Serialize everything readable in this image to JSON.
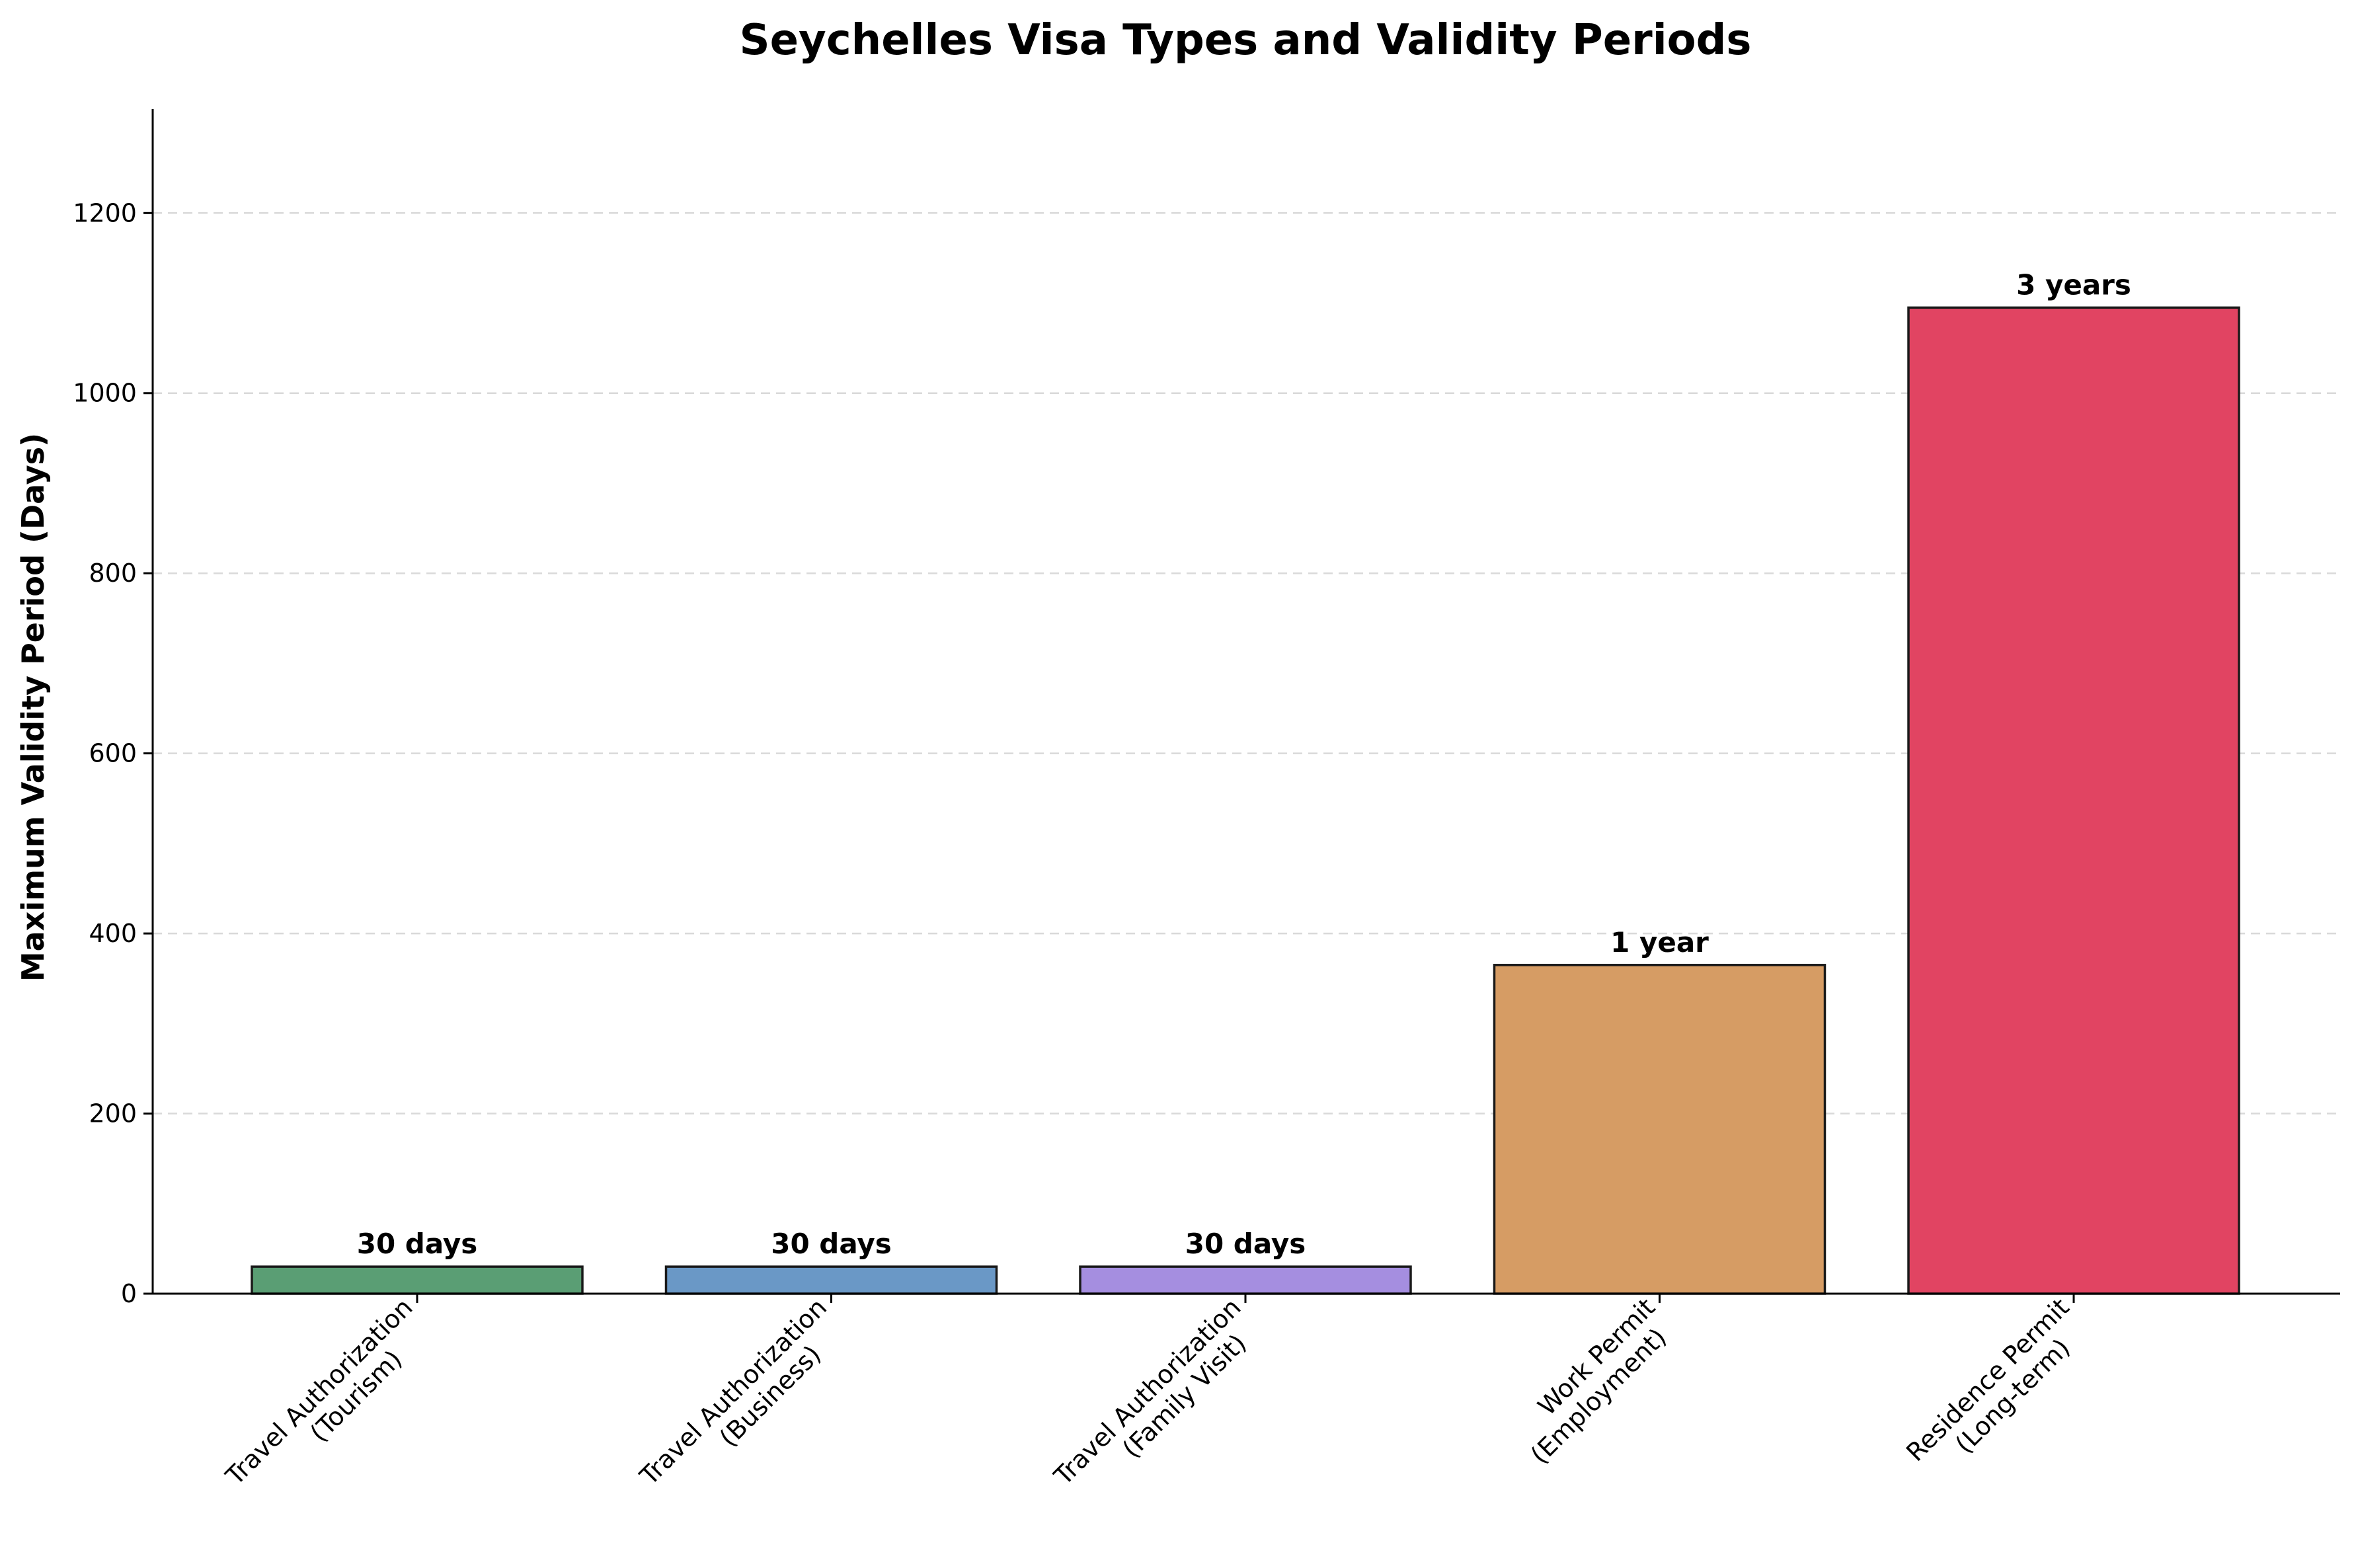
{
  "chart_data": {
    "type": "bar",
    "title": "Seychelles Visa Types and Validity Periods",
    "xlabel": "",
    "ylabel": "Maximum Validity Period (Days)",
    "ylim": [
      0,
      1314
    ],
    "yticks": [
      0,
      200,
      400,
      600,
      800,
      1000,
      1200
    ],
    "grid": "y-axis dashed",
    "categories": [
      [
        "Travel Authorization",
        "(Tourism)"
      ],
      [
        "Travel Authorization",
        "(Business)"
      ],
      [
        "Travel Authorization",
        "(Family Visit)"
      ],
      [
        "Work Permit",
        "(Employment)"
      ],
      [
        "Residence Permit",
        "(Long-term)"
      ]
    ],
    "values": [
      30,
      30,
      30,
      365,
      1095
    ],
    "value_labels": [
      "30 days",
      "30 days",
      "30 days",
      "1 year",
      "3 years"
    ],
    "colors": [
      "#5a9e74",
      "#6a98c6",
      "#a58ee0",
      "#d69c64",
      "#e14462"
    ]
  }
}
